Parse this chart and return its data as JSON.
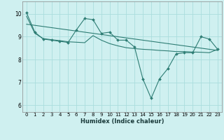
{
  "title": "",
  "xlabel": "Humidex (Indice chaleur)",
  "bg_color": "#cff0f0",
  "plot_bg_color": "#cff0f0",
  "grid_color": "#aadddd",
  "line_color": "#2e7d74",
  "xlim": [
    -0.5,
    23.5
  ],
  "ylim": [
    5.7,
    10.55
  ],
  "yticks": [
    6,
    7,
    8,
    9
  ],
  "ytick_top": 10,
  "xticks": [
    0,
    1,
    2,
    3,
    4,
    5,
    6,
    7,
    8,
    9,
    10,
    11,
    12,
    13,
    14,
    15,
    16,
    17,
    18,
    19,
    20,
    21,
    22,
    23
  ],
  "series1_x": [
    0,
    1,
    2,
    3,
    4,
    5,
    6,
    7,
    8,
    9,
    10,
    11,
    12,
    13,
    14,
    15,
    16,
    17,
    18,
    19,
    20,
    21,
    22,
    23
  ],
  "series1_y": [
    10.05,
    9.2,
    8.9,
    8.85,
    8.8,
    8.75,
    9.3,
    9.8,
    9.75,
    9.15,
    9.2,
    8.85,
    8.85,
    8.55,
    7.15,
    6.3,
    7.15,
    7.6,
    8.25,
    8.3,
    8.3,
    9.0,
    8.9,
    8.45
  ],
  "series2_x": [
    0,
    1,
    2,
    3,
    4,
    5,
    6,
    7,
    8,
    9,
    10,
    11,
    12,
    13,
    14,
    15,
    16,
    17,
    18,
    19,
    20,
    21,
    22,
    23
  ],
  "series2_y": [
    9.9,
    9.15,
    8.92,
    8.87,
    8.83,
    8.78,
    8.76,
    8.74,
    9.05,
    8.85,
    8.7,
    8.6,
    8.52,
    8.48,
    8.45,
    8.43,
    8.4,
    8.38,
    8.35,
    8.35,
    8.33,
    8.32,
    8.3,
    8.45
  ],
  "trend_x": [
    0,
    23
  ],
  "trend_y": [
    9.55,
    8.4
  ]
}
